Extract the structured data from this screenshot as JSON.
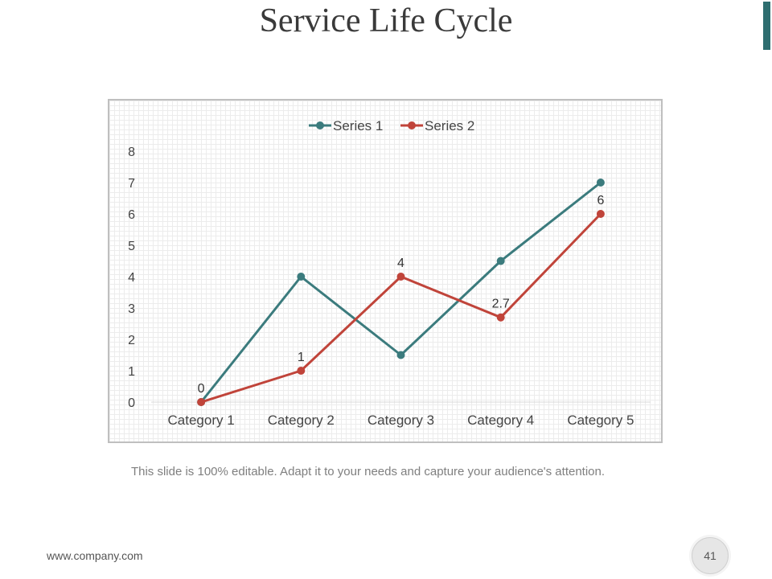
{
  "slide": {
    "title": "Service Life Cycle",
    "caption": "This slide is 100% editable. Adapt it to your needs and capture your audience's attention.",
    "footer_url": "www.company.com",
    "page_number": "41"
  },
  "colors": {
    "accent": "#2e6e70",
    "series1": "#3b7b7d",
    "series2": "#c0443a"
  },
  "chart_data": {
    "type": "line",
    "title": "",
    "xlabel": "",
    "ylabel": "",
    "ylim": [
      0,
      8
    ],
    "yticks": [
      "0",
      "1",
      "2",
      "3",
      "4",
      "5",
      "6",
      "7",
      "8"
    ],
    "legend_position": "top",
    "grid": true,
    "categories": [
      "Category 1",
      "Category 2",
      "Category 3",
      "Category 4",
      "Category 5"
    ],
    "series": [
      {
        "name": "Series 1",
        "values": [
          0,
          4,
          1.5,
          4.5,
          7
        ],
        "labels": [
          null,
          null,
          null,
          null,
          null
        ]
      },
      {
        "name": "Series 2",
        "values": [
          0,
          1,
          4,
          2.7,
          6
        ],
        "labels": [
          "0",
          "1",
          "4",
          "2.7",
          "6"
        ]
      }
    ]
  }
}
